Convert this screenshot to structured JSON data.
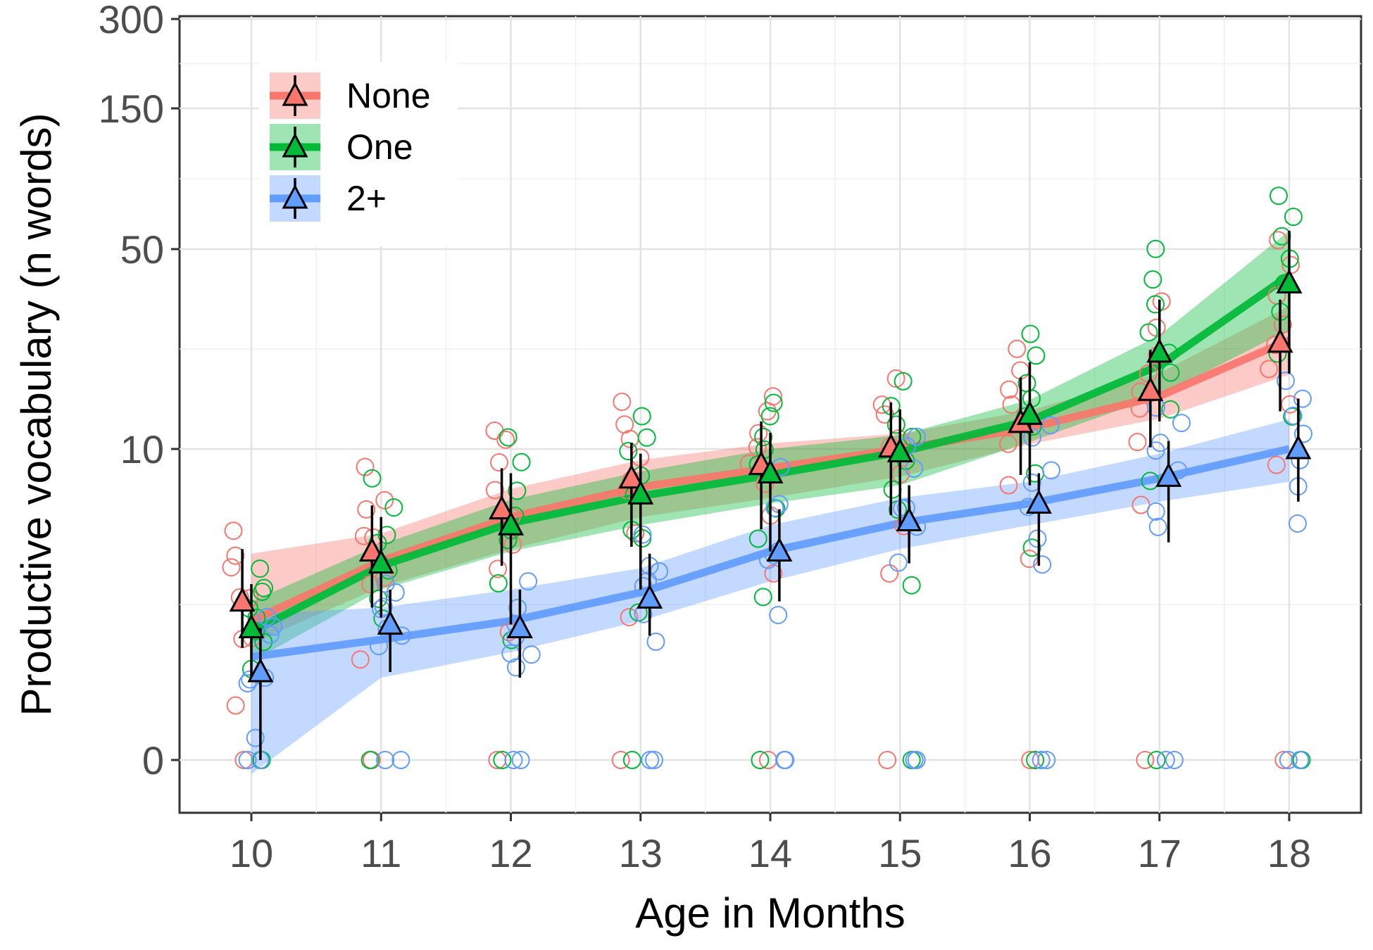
{
  "chart_data": {
    "type": "line",
    "title": "",
    "xlabel": "Age in Months",
    "ylabel": "Productive vocabulary (n words)",
    "x_ticks": [
      10,
      11,
      12,
      13,
      14,
      15,
      16,
      17,
      18
    ],
    "y_ticks": [
      0,
      10,
      50,
      150,
      300
    ],
    "y_scale": "pseudo-log (sqrt-like)",
    "ylim": [
      -1,
      310
    ],
    "xlim": [
      9.45,
      18.48
    ],
    "grid": true,
    "legend_position": "top-left",
    "series": [
      {
        "name": "None",
        "color": "#f8766d",
        "fill": "#f8766d",
        "x": [
          10,
          11,
          12,
          13,
          14,
          15,
          16,
          17,
          18
        ],
        "mean": [
          2.6,
          4.5,
          6.5,
          8.2,
          9.0,
          10.2,
          13.5,
          18.5,
          27.5
        ],
        "ci_low": [
          1.3,
          2.4,
          3.9,
          4.7,
          5.5,
          6.2,
          8.4,
          10.2,
          15.2
        ],
        "ci_high": [
          4.6,
          6.7,
          8.8,
          10.8,
          13.7,
          16.6,
          20.8,
          26.0,
          37.0
        ],
        "trend": [
          2.0,
          4.1,
          6.1,
          7.7,
          8.8,
          10.0,
          12.8,
          17.6,
          28.0
        ],
        "band_low": [
          1.4,
          3.1,
          4.6,
          6.1,
          7.1,
          8.3,
          10.6,
          14.1,
          21.3
        ],
        "band_high": [
          4.4,
          5.3,
          7.6,
          9.3,
          10.7,
          12.0,
          15.3,
          21.6,
          35.5
        ]
      },
      {
        "name": "One",
        "color": "#00ba38",
        "fill": "#00ba38",
        "x": [
          10,
          11,
          12,
          13,
          14,
          15,
          16,
          17,
          18
        ],
        "mean": [
          1.8,
          4.0,
          5.7,
          7.3,
          8.5,
          9.8,
          14.7,
          25.5,
          41.0
        ],
        "ci_low": [
          0.7,
          2.1,
          1.9,
          3.0,
          4.5,
          5.6,
          7.8,
          13.7,
          21.5
        ],
        "ci_high": [
          3.2,
          6.1,
          8.5,
          9.7,
          12.1,
          15.5,
          23.6,
          37.0,
          60.0
        ],
        "trend": [
          1.7,
          3.9,
          5.8,
          7.2,
          8.4,
          9.8,
          13.8,
          23.0,
          43.0
        ],
        "band_low": [
          1.0,
          3.0,
          4.5,
          5.7,
          6.8,
          7.8,
          10.9,
          17.7,
          30.2
        ],
        "band_high": [
          2.6,
          4.8,
          7.0,
          8.6,
          10.0,
          11.8,
          17.0,
          29.0,
          60.0
        ]
      },
      {
        "name": "2+",
        "color": "#619cff",
        "fill": "#619cff",
        "x": [
          10,
          11,
          12,
          13,
          14,
          15,
          16,
          17,
          18
        ],
        "mean": [
          0.8,
          1.9,
          1.8,
          2.7,
          4.5,
          5.9,
          6.8,
          8.3,
          10.0
        ],
        "ci_low": [
          0,
          0.8,
          0.7,
          1.6,
          2.6,
          4.0,
          3.9,
          4.9,
          6.9
        ],
        "ci_high": [
          1.8,
          3.0,
          3.0,
          4.4,
          6.5,
          7.8,
          8.5,
          11.0,
          17.2
        ],
        "trend": [
          1.1,
          1.5,
          2.0,
          2.9,
          4.5,
          5.8,
          6.8,
          8.2,
          10.0
        ],
        "band_low": [
          -0.5,
          0.7,
          1.2,
          2.0,
          3.3,
          4.6,
          5.7,
          6.9,
          8.0
        ],
        "band_high": [
          2.2,
          2.4,
          3.0,
          3.8,
          5.7,
          7.1,
          8.0,
          9.7,
          14.0
        ]
      }
    ],
    "legend": [
      "None",
      "One",
      "2+"
    ]
  }
}
